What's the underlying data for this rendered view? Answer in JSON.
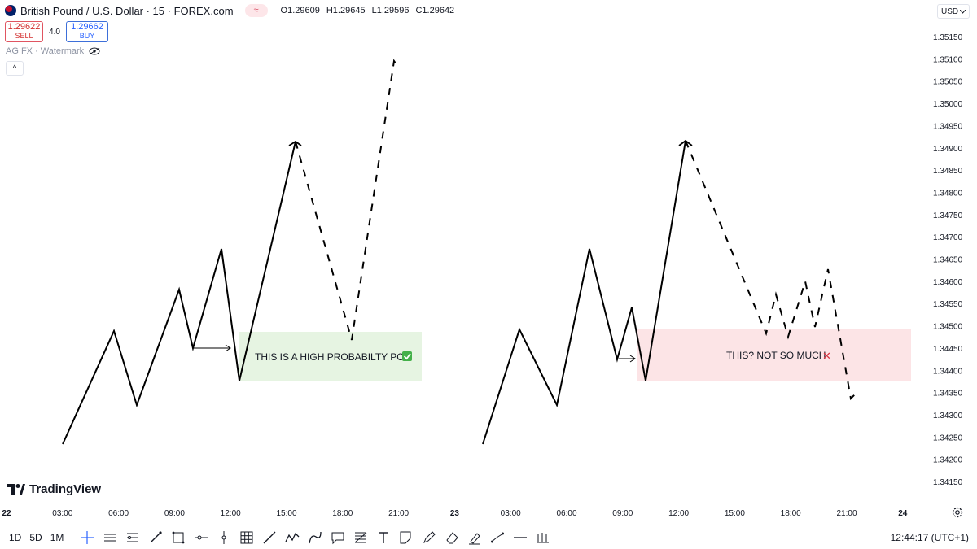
{
  "header": {
    "title": "British Pound / U.S. Dollar · 15 · FOREX.com",
    "badge_icon": "≈",
    "ohlc": [
      "O1.29609",
      "H1.29645",
      "L1.29596",
      "C1.29642"
    ]
  },
  "trade": {
    "sell_price": "1.29622",
    "sell_label": "SELL",
    "spread": "4.0",
    "buy_price": "1.29662",
    "buy_label": "BUY"
  },
  "watermark_label": "AG FX · Watermark",
  "collapse_icon": "^",
  "currency": "USD",
  "logo_text": "TradingView",
  "chart_data": {
    "type": "line",
    "title": "",
    "ylim": [
      1.341,
      1.3515
    ],
    "y_ticks": [
      "1.35150",
      "1.35100",
      "1.35050",
      "1.35000",
      "1.34950",
      "1.34900",
      "1.34850",
      "1.34800",
      "1.34750",
      "1.34700",
      "1.34650",
      "1.34600",
      "1.34550",
      "1.34500",
      "1.34450",
      "1.34400",
      "1.34350",
      "1.34300",
      "1.34250",
      "1.34200",
      "1.34150"
    ],
    "x_ticks": [
      "22",
      "03:00",
      "06:00",
      "09:00",
      "12:00",
      "15:00",
      "18:00",
      "21:00",
      "23",
      "03:00",
      "06:00",
      "09:00",
      "12:00",
      "15:00",
      "18:00",
      "21:00",
      "24"
    ],
    "grid": false,
    "annotations": [
      {
        "label": "THIS IS A HIGH PROBABILTY POI",
        "mark": "✅",
        "zone_color": "#e6f4e2"
      },
      {
        "label": "THIS? NOT SO MUCH",
        "mark": "✕",
        "zone_color": "#fce4e6"
      }
    ]
  },
  "toolbar": {
    "ranges": [
      "1D",
      "5D",
      "1M"
    ],
    "tool_icons": [
      "crosshair-icon",
      "horizontal-lines-icon",
      "pitchfork-icon",
      "brush-icon",
      "rectangle-icon",
      "horizontal-ray-icon",
      "vertical-line-icon",
      "grid-icon",
      "trend-line-icon",
      "zigzag-icon",
      "curve-icon",
      "callout-icon",
      "fib-icon",
      "text-icon",
      "note-icon",
      "pen-icon",
      "eraser-icon",
      "highlighter-icon",
      "path-icon",
      "line-icon",
      "measure-icon"
    ],
    "clock": "12:44:17 (UTC+1)"
  }
}
